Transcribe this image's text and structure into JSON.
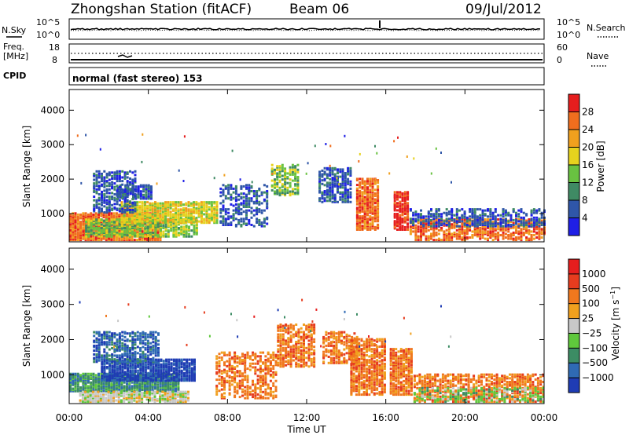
{
  "header": {
    "station": "Zhongshan Station (fitACF)",
    "beam": "Beam 06",
    "date": "09/Jul/2012"
  },
  "top_panels": {
    "nsky_label": "N.Sky",
    "nsearch_label": "N.Search",
    "nsky_ticks": [
      "10^5",
      "10^0"
    ],
    "nsearch_ticks": [
      "10^5",
      "10^0"
    ],
    "freq_label_1": "Freq.",
    "freq_label_2": "[MHz]",
    "freq_ticks": [
      "18",
      "8"
    ],
    "nave_label": "Nave",
    "nave_ticks": [
      "60",
      "0"
    ],
    "cpid_label": "CPID",
    "cpid_text": "normal (fast stereo) 153"
  },
  "colors": {
    "power": [
      "#1f1fe6",
      "#2f56a8",
      "#3f8a64",
      "#69c241",
      "#e6d21e",
      "#f0a01e",
      "#f06e1e",
      "#e61e1e"
    ],
    "velocity": [
      "#1f3cb4",
      "#2f6ab4",
      "#3c8c64",
      "#5fc83c",
      "#c8c8c8",
      "#f0a01e",
      "#f0781e",
      "#e63c1e",
      "#e61e1e"
    ]
  },
  "chart_data": [
    {
      "type": "heatmap",
      "name": "power",
      "xlabel": "",
      "ylabel": "Slant Range [km]",
      "colorbar_label": "Power [dB]",
      "colorbar_ticks": [
        "4",
        "8",
        "12",
        "16",
        "20",
        "24",
        "28"
      ],
      "x_ticks": [
        "00:00",
        "04:00",
        "08:00",
        "12:00",
        "16:00",
        "20:00",
        "00:00"
      ],
      "y_ticks": [
        "1000",
        "2000",
        "3000",
        "4000"
      ],
      "xlim": [
        0,
        24
      ],
      "ylim": [
        180,
        4600
      ],
      "blobs": [
        {
          "t0": 0.0,
          "t1": 4.6,
          "r0": 200,
          "r1": 1000,
          "color": 6,
          "density": 0.85
        },
        {
          "t0": 0.8,
          "t1": 6.4,
          "r0": 300,
          "r1": 800,
          "color": 3,
          "density": 0.7
        },
        {
          "t0": 2.6,
          "t1": 7.5,
          "r0": 700,
          "r1": 1300,
          "color": 4,
          "density": 0.75
        },
        {
          "t0": 2.4,
          "t1": 4.2,
          "r0": 1400,
          "r1": 1800,
          "color": 1,
          "density": 0.7
        },
        {
          "t0": 1.2,
          "t1": 3.4,
          "r0": 1000,
          "r1": 2200,
          "color": 1,
          "density": 0.45
        },
        {
          "t0": 7.6,
          "t1": 10.0,
          "r0": 600,
          "r1": 1800,
          "color": 1,
          "density": 0.35
        },
        {
          "t0": 10.2,
          "t1": 11.6,
          "r0": 1500,
          "r1": 2400,
          "color": 3,
          "density": 0.45
        },
        {
          "t0": 12.6,
          "t1": 14.2,
          "r0": 1300,
          "r1": 2300,
          "color": 1,
          "density": 0.55
        },
        {
          "t0": 14.5,
          "t1": 15.6,
          "r0": 500,
          "r1": 2000,
          "color": 6,
          "density": 0.7
        },
        {
          "t0": 16.4,
          "t1": 17.1,
          "r0": 500,
          "r1": 1600,
          "color": 7,
          "density": 0.75
        },
        {
          "t0": 17.2,
          "t1": 24.0,
          "r0": 200,
          "r1": 800,
          "color": 6,
          "density": 0.55
        },
        {
          "t0": 17.2,
          "t1": 24.0,
          "r0": 600,
          "r1": 1100,
          "color": 1,
          "density": 0.45
        }
      ]
    },
    {
      "type": "heatmap",
      "name": "velocity",
      "xlabel": "Time UT",
      "ylabel": "Slant Range [km]",
      "colorbar_label": "Velocity [m s^-1]",
      "colorbar_ticks": [
        "-1000",
        "-500",
        "-100",
        "-25",
        "25",
        "100",
        "500",
        "1000"
      ],
      "x_ticks": [
        "00:00",
        "04:00",
        "08:00",
        "12:00",
        "16:00",
        "20:00",
        "00:00"
      ],
      "y_ticks": [
        "1000",
        "2000",
        "3000",
        "4000"
      ],
      "xlim": [
        0,
        24
      ],
      "ylim": [
        180,
        4600
      ],
      "blobs": [
        {
          "t0": 0.0,
          "t1": 5.5,
          "r0": 500,
          "r1": 1000,
          "color": 2,
          "density": 0.85
        },
        {
          "t0": 0.5,
          "t1": 6.0,
          "r0": 200,
          "r1": 500,
          "color": 4,
          "density": 0.7
        },
        {
          "t0": 1.6,
          "t1": 6.3,
          "r0": 800,
          "r1": 1400,
          "color": 0,
          "density": 0.8
        },
        {
          "t0": 1.2,
          "t1": 4.5,
          "r0": 1300,
          "r1": 2200,
          "color": 1,
          "density": 0.5
        },
        {
          "t0": 7.4,
          "t1": 10.4,
          "r0": 300,
          "r1": 1600,
          "color": 6,
          "density": 0.4
        },
        {
          "t0": 10.5,
          "t1": 12.4,
          "r0": 1200,
          "r1": 2400,
          "color": 6,
          "density": 0.5
        },
        {
          "t0": 12.8,
          "t1": 14.6,
          "r0": 1300,
          "r1": 2200,
          "color": 6,
          "density": 0.5
        },
        {
          "t0": 14.2,
          "t1": 16.0,
          "r0": 400,
          "r1": 2000,
          "color": 6,
          "density": 0.65
        },
        {
          "t0": 16.2,
          "t1": 17.3,
          "r0": 400,
          "r1": 1700,
          "color": 6,
          "density": 0.7
        },
        {
          "t0": 17.4,
          "t1": 24.0,
          "r0": 200,
          "r1": 1000,
          "color": 6,
          "density": 0.55
        },
        {
          "t0": 17.4,
          "t1": 24.0,
          "r0": 200,
          "r1": 600,
          "color": 3,
          "density": 0.3
        }
      ]
    }
  ]
}
